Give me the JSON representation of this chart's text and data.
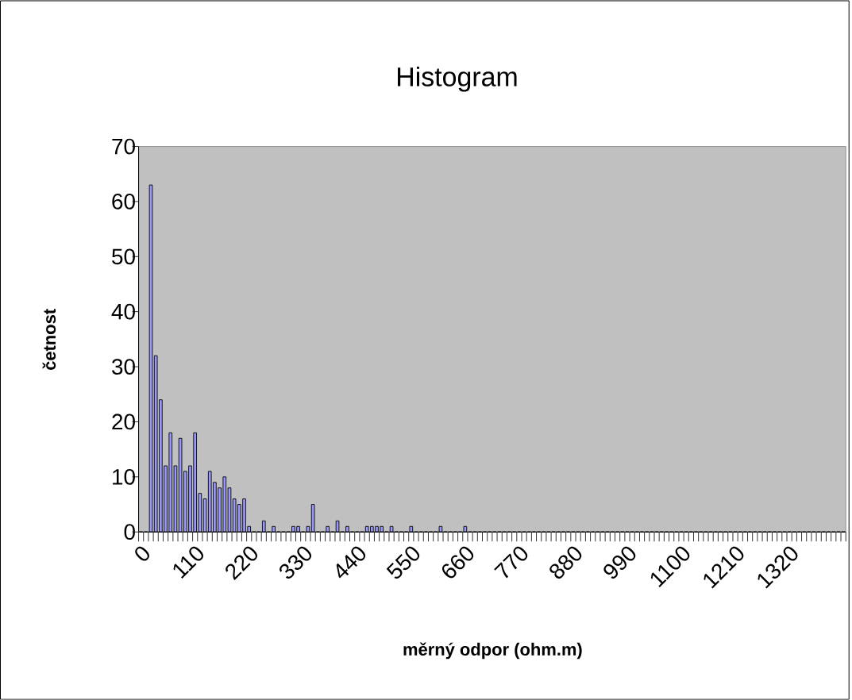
{
  "chart_data": {
    "type": "bar",
    "title": "Histogram",
    "xlabel": "měrný odpor (ohm.m)",
    "ylabel": "četnost",
    "categories": [
      "0",
      null,
      null,
      null,
      null,
      null,
      null,
      null,
      null,
      null,
      null,
      "110",
      null,
      null,
      null,
      null,
      null,
      null,
      null,
      null,
      null,
      null,
      "220",
      null,
      null,
      null,
      null,
      null,
      null,
      null,
      null,
      null,
      null,
      "330",
      null,
      null,
      null,
      null,
      null,
      null,
      null,
      null,
      null,
      null,
      "440",
      null,
      null,
      null,
      null,
      null,
      null,
      null,
      null,
      null,
      null,
      "550",
      null,
      null,
      null,
      null,
      null,
      null,
      null,
      null,
      null,
      null,
      "660",
      null,
      null,
      null,
      null,
      null,
      null,
      null,
      null,
      null,
      null,
      "770",
      null,
      null,
      null,
      null,
      null,
      null,
      null,
      null,
      null,
      null,
      "880",
      null,
      null,
      null,
      null,
      null,
      null,
      null,
      null,
      null,
      null,
      "990",
      null,
      null,
      null,
      null,
      null,
      null,
      null,
      null,
      null,
      null,
      "1100",
      null,
      null,
      null,
      null,
      null,
      null,
      null,
      null,
      null,
      null,
      "1210",
      null,
      null,
      null,
      null,
      null,
      null,
      null,
      null,
      null,
      null,
      "1320",
      null,
      null,
      null,
      null,
      null,
      null,
      null,
      null,
      null,
      null,
      null
    ],
    "values": [
      0,
      0,
      63,
      32,
      24,
      12,
      18,
      12,
      17,
      11,
      12,
      18,
      7,
      6,
      11,
      9,
      8,
      10,
      8,
      6,
      5,
      6,
      1,
      0,
      0,
      2,
      0,
      1,
      0,
      0,
      0,
      1,
      1,
      0,
      1,
      5,
      0,
      0,
      1,
      0,
      2,
      0,
      1,
      0,
      0,
      0,
      1,
      1,
      1,
      1,
      0,
      1,
      0,
      0,
      0,
      1,
      0,
      0,
      0,
      0,
      0,
      1,
      0,
      0,
      0,
      0,
      1,
      0,
      0,
      0,
      0,
      0,
      0,
      0,
      0,
      0,
      0,
      0,
      0,
      0,
      0,
      0,
      0,
      0,
      0,
      0,
      0,
      0,
      0,
      0,
      0,
      0,
      0,
      0,
      0,
      0,
      0,
      0,
      0,
      0,
      0,
      0,
      0,
      0,
      0,
      0,
      0,
      0,
      0,
      0,
      0,
      0,
      0,
      0,
      0,
      0,
      0,
      0,
      0,
      0,
      0,
      0,
      0,
      0,
      0,
      0,
      0,
      0,
      0,
      0,
      0,
      0,
      0,
      0,
      0,
      0,
      0,
      0,
      0,
      0,
      0,
      0,
      0,
      0
    ],
    "color": "#9999ff",
    "ylim": [
      0,
      70
    ],
    "yticks": [
      0,
      10,
      20,
      30,
      40,
      50,
      60,
      70
    ]
  }
}
